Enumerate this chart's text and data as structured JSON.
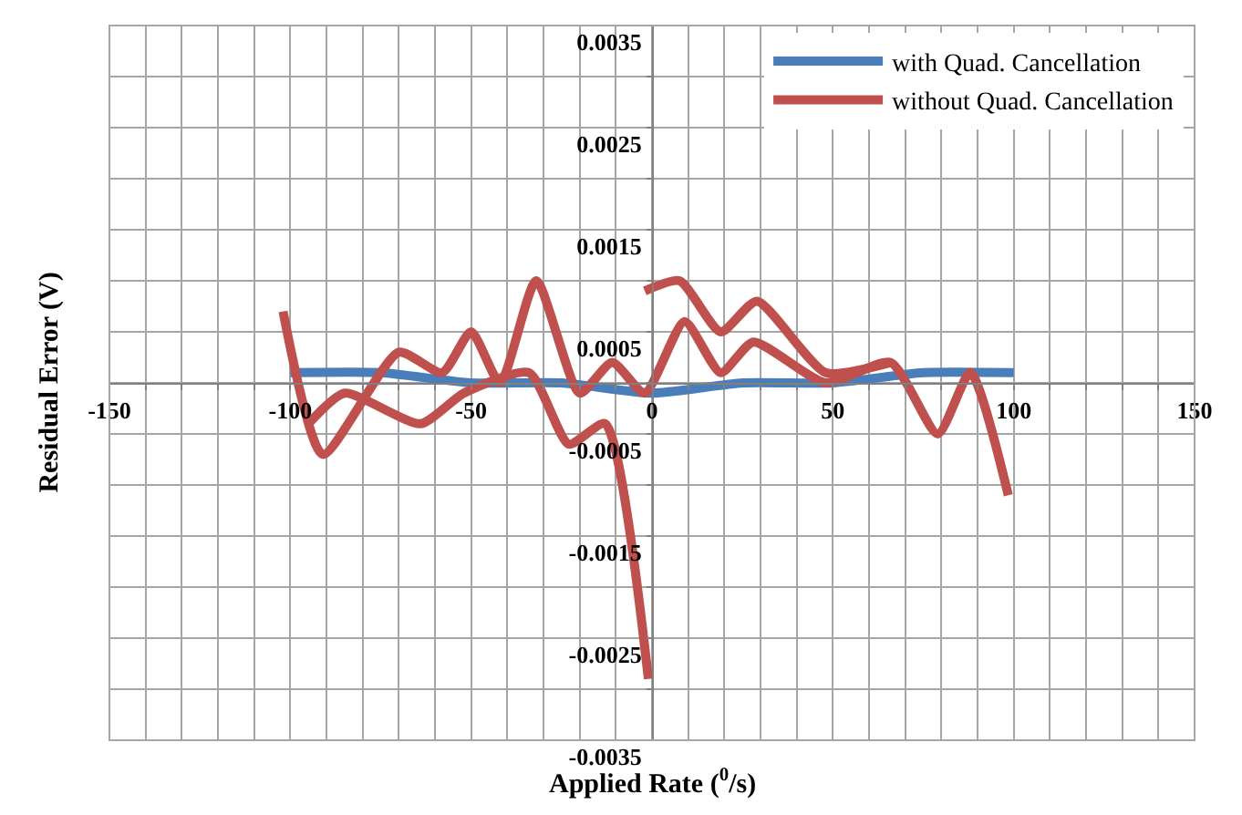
{
  "chart_data": {
    "type": "line",
    "xlabel": "Applied Rate ($^{0}$/s)",
    "ylabel": "Residual Error (V)",
    "series": [
      {
        "name": "with Quad. Cancellation",
        "color": "#4a7ebb",
        "x": [
          -100,
          -75,
          -50,
          -25,
          0,
          25,
          50,
          75,
          100
        ],
        "values": [
          0.0001,
          0.0001,
          0.0,
          0.0,
          -0.0001,
          0.0,
          0.0,
          0.0001,
          0.0001
        ]
      },
      {
        "name": "without Quad. Cancellation",
        "color": "#c0504d",
        "x": [
          -102,
          -91,
          -70,
          -58,
          -50,
          -42,
          -32,
          -20,
          -11,
          -2,
          9,
          19,
          28,
          48,
          66,
          79,
          88,
          98.5
        ],
        "values": [
          0.0007,
          -0.0007,
          0.0003,
          0.0001,
          0.0005,
          0.0,
          0.001,
          -0.0001,
          0.0002,
          -0.0001,
          0.0006,
          0.0001,
          0.0004,
          0.0,
          0.0002,
          -0.0005,
          0.0001,
          -0.0011
        ]
      },
      {
        "color": "#c0504d",
        "x": [
          -95,
          -85,
          -64,
          -52,
          -34,
          -23,
          -13,
          -1
        ],
        "values": [
          -0.0004,
          -0.0001,
          -0.0004,
          -0.0001,
          0.0001,
          -0.0006,
          -0.0004,
          -0.0029
        ]
      },
      {
        "color": "#c0504d",
        "x": [
          -2,
          7.6,
          19,
          29,
          48,
          66
        ],
        "values": [
          0.0009,
          0.001,
          0.0005,
          0.0008,
          0.0001,
          0.0002
        ]
      }
    ],
    "xlim": [
      -150,
      150
    ],
    "xticks": [
      -150,
      {
        "value": -140,
        "label": null
      },
      {
        "value": -130,
        "label": null
      },
      {
        "value": -120,
        "label": null
      },
      {
        "value": -110,
        "label": null
      },
      -100,
      {
        "value": -90,
        "label": null
      },
      {
        "value": -80,
        "label": null
      },
      {
        "value": -70,
        "label": null
      },
      {
        "value": -60,
        "label": null
      },
      -50,
      {
        "value": -40,
        "label": null
      },
      {
        "value": -30,
        "label": null
      },
      {
        "value": -20,
        "label": null
      },
      {
        "value": -10,
        "label": null
      },
      0,
      {
        "value": 10,
        "label": null
      },
      {
        "value": 20,
        "label": null
      },
      {
        "value": 30,
        "label": null
      },
      {
        "value": 40,
        "label": null
      },
      50,
      {
        "value": 60,
        "label": null
      },
      {
        "value": 70,
        "label": null
      },
      {
        "value": 80,
        "label": null
      },
      {
        "value": 90,
        "label": null
      },
      100,
      {
        "value": 110,
        "label": null
      },
      {
        "value": 120,
        "label": null
      },
      {
        "value": 130,
        "label": null
      },
      {
        "value": 140,
        "label": null
      },
      150
    ],
    "ylim": [
      -0.0035,
      0.0035
    ],
    "yticks": [
      -0.0035,
      {
        "value": -0.003,
        "label": null
      },
      -0.0025,
      {
        "value": -0.002,
        "label": null
      },
      -0.0015,
      {
        "value": -0.001,
        "label": null
      },
      -0.0005,
      {
        "value": 0,
        "label": null
      },
      0.0005,
      {
        "value": 0.001,
        "label": null
      },
      0.0015,
      {
        "value": 0.002,
        "label": null
      },
      0.0025,
      {
        "value": 0.003,
        "label": null
      },
      0.0035
    ],
    "grid": true,
    "legend": "top right",
    "marker": "none",
    "line_style": "solid"
  }
}
